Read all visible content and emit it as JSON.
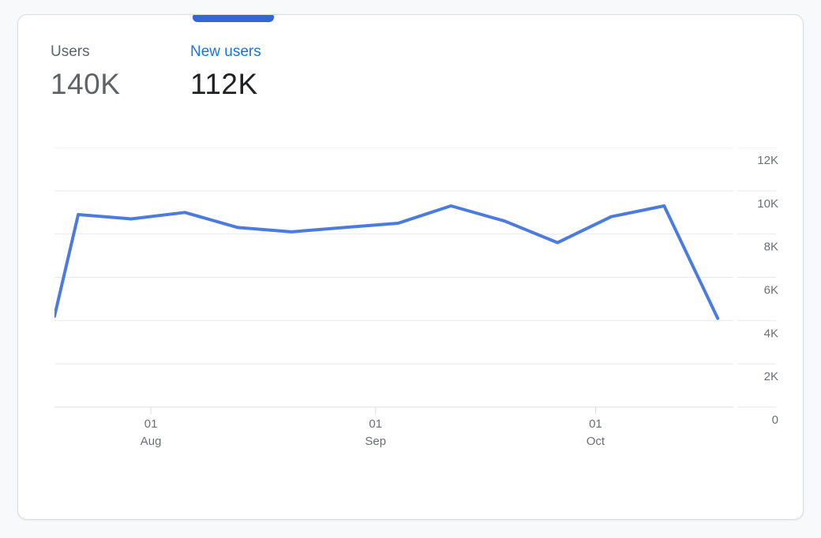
{
  "card": {
    "metrics": [
      {
        "label": "Users",
        "value": "140K",
        "selected": false
      },
      {
        "label": "New users",
        "value": "112K",
        "selected": true
      }
    ]
  },
  "colors": {
    "page_background": "#f8f9fa",
    "card_background": "#ffffff",
    "card_border": "#dadce0",
    "indicator_blue": "#3367d6",
    "selected_label_blue": "#1a73e8",
    "metric_gray": "#5f6368",
    "value_dark": "#202124",
    "axis_label_gray": "#6b6f74",
    "gridline_gray": "#e9e9e9",
    "axis_line_gray": "#dcdee0",
    "line_blue": "#4c7be0"
  },
  "chart_data": {
    "type": "line",
    "title": "",
    "xlabel": "",
    "ylabel": "",
    "ylim": [
      0,
      12000
    ],
    "grid": "horizontal",
    "legend": "none",
    "y_ticks": [
      {
        "value": 12000,
        "label": "12K"
      },
      {
        "value": 10000,
        "label": "10K"
      },
      {
        "value": 8000,
        "label": "8K"
      },
      {
        "value": 6000,
        "label": "6K"
      },
      {
        "value": 4000,
        "label": "4K"
      },
      {
        "value": 2000,
        "label": "2K"
      },
      {
        "value": 0,
        "label": "0"
      }
    ],
    "x_ticks": [
      {
        "frac": 0.142,
        "line1": "01",
        "line2": "Aug"
      },
      {
        "frac": 0.473,
        "line1": "01",
        "line2": "Sep"
      },
      {
        "frac": 0.797,
        "line1": "01",
        "line2": "Oct"
      }
    ],
    "series": [
      {
        "name": "New users",
        "x_frac": [
          0,
          0.035,
          0.113,
          0.192,
          0.27,
          0.349,
          0.427,
          0.506,
          0.584,
          0.663,
          0.741,
          0.82,
          0.898,
          0.977
        ],
        "values": [
          4200,
          8900,
          8700,
          9000,
          8300,
          8100,
          8300,
          8500,
          9300,
          8600,
          7600,
          8800,
          9300,
          4100
        ]
      }
    ]
  }
}
